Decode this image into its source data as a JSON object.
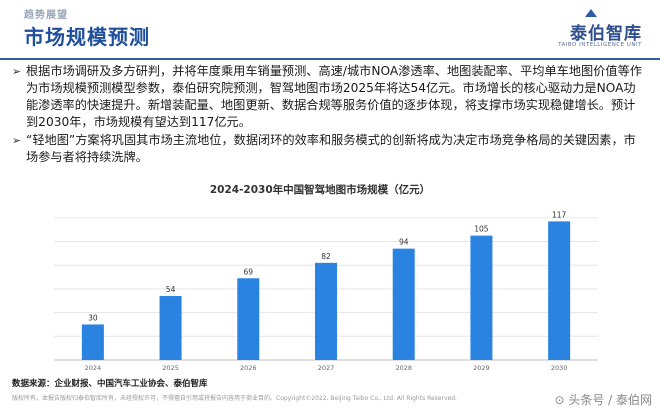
{
  "header": {
    "section_label": "趋势展望",
    "title": "市场规模预测",
    "logo_cn": "泰伯智库",
    "logo_en": "TAIBO INTELLIGENCE UNIT",
    "accent_color": "#2e5aa8"
  },
  "bullets": [
    "根据市场调研及多方研判，并将年度乘用车销量预测、高速/城市NOA渗透率、地图装配率、平均单车地图价值等作为市场规模预测模型参数，泰伯研究院预测，智驾地图市场2025年将达54亿元。市场增长的核心驱动力是NOA功能渗透率的快速提升。新增装配量、地图更新、数据合规等服务价值的逐步体现，将支撑市场实现稳健增长。预计到2030年，市场规模有望达到117亿元。",
    "“轻地图”方案将巩固其市场主流地位，数据闭环的效率和服务模式的创新将成为决定市场竞争格局的关键因素，市场参与者将持续洗牌。"
  ],
  "chart_data": {
    "type": "bar",
    "title": "2024-2030年中国智驾地图市场规模（亿元）",
    "categories": [
      "2024",
      "2025",
      "2026",
      "2027",
      "2028",
      "2029",
      "2030"
    ],
    "values": [
      30,
      54,
      69,
      82,
      94,
      105,
      117
    ],
    "ylim": [
      0,
      130
    ],
    "grid": true,
    "bar_color": "#2a83e0"
  },
  "source": "数据来源：企业财报、中国汽车工业协会、泰伯智库",
  "footer": {
    "disclaimer": "版权所有。本报告版权归泰伯智库所有，未经授权许可，不得擅自引用或将报告内容用于商业目的。Copyright©2022, Beijing Taibo Co., Ltd. All Rights Reserved.",
    "watermark": "⊙ 头条号 / 泰伯网"
  }
}
